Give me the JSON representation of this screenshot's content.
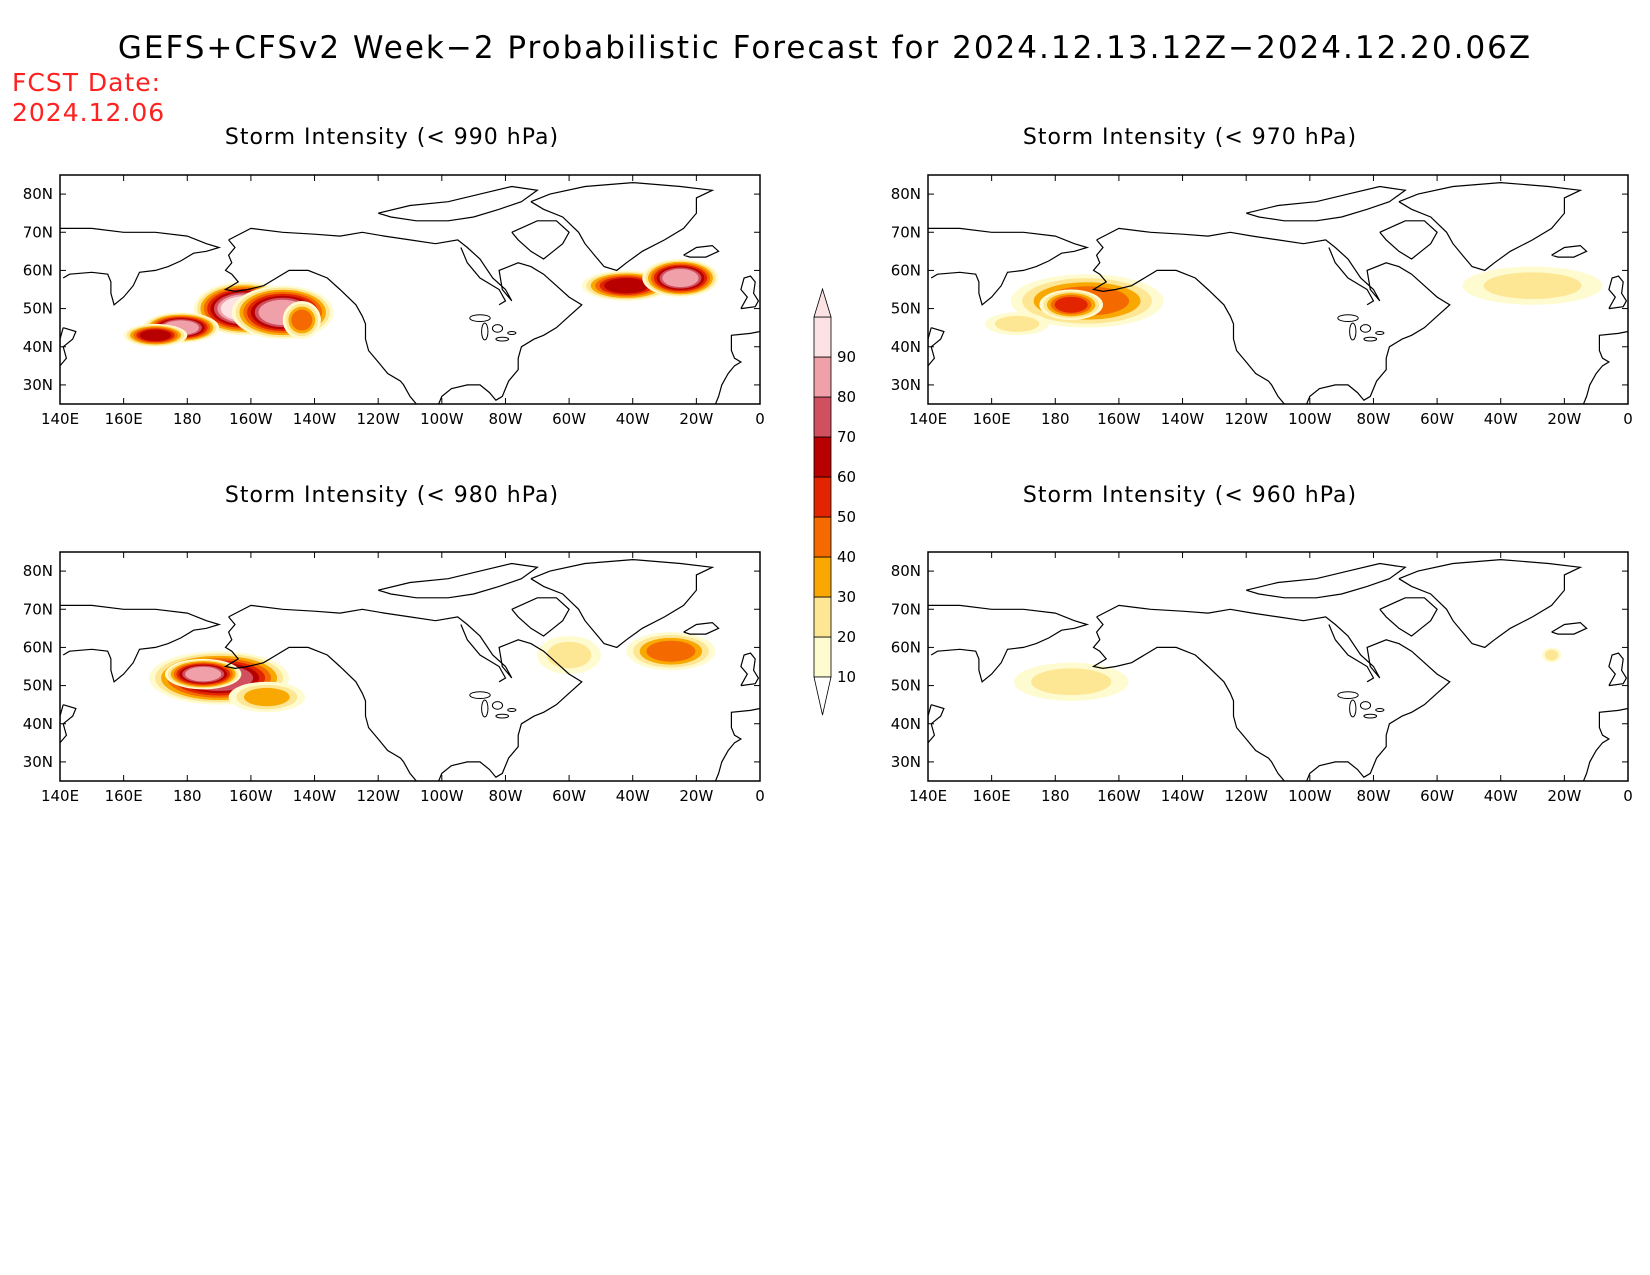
{
  "title": "GEFS+CFSv2 Week−2 Probabilistic Forecast for 2024.12.13.12Z−2024.12.20.06Z",
  "forecast_date": {
    "label": "FCST Date:",
    "value": "2024.12.06"
  },
  "panels": [
    {
      "title": "Storm Intensity (< 990 hPa)"
    },
    {
      "title": "Storm Intensity (< 970 hPa)"
    },
    {
      "title": "Storm Intensity (< 980 hPa)"
    },
    {
      "title": "Storm Intensity (< 960 hPa)"
    }
  ],
  "axes": {
    "lon_labels": [
      "140E",
      "160E",
      "180",
      "160W",
      "140W",
      "120W",
      "100W",
      "80W",
      "60W",
      "40W",
      "20W",
      "0"
    ],
    "lat_labels": [
      "80N",
      "70N",
      "60N",
      "50N",
      "40N",
      "30N"
    ],
    "lon_range": [
      140,
      360
    ],
    "lat_range": [
      25,
      85
    ]
  },
  "colorbar": {
    "levels": [
      10,
      20,
      30,
      40,
      50,
      60,
      70,
      80,
      90
    ],
    "colors": [
      "#fffbd0",
      "#fde794",
      "#f8a800",
      "#f46a00",
      "#e22400",
      "#b80000",
      "#d05060",
      "#f0a0a8",
      "#fde2e4"
    ]
  },
  "chart_data": {
    "type": "heatmap",
    "units": "probability (%)",
    "maps": [
      {
        "panel": 0,
        "blobs": [
          {
            "lon": 198,
            "lat": 50,
            "value": 90,
            "rlon": 16,
            "rlat": 7
          },
          {
            "lon": 210,
            "lat": 49,
            "value": 80,
            "rlon": 16,
            "rlat": 7
          },
          {
            "lon": 178,
            "lat": 45,
            "value": 80,
            "rlon": 12,
            "rlat": 4
          },
          {
            "lon": 170,
            "lat": 43,
            "value": 60,
            "rlon": 10,
            "rlat": 3
          },
          {
            "lon": 216,
            "lat": 47,
            "value": 40,
            "rlon": 6,
            "rlat": 5
          },
          {
            "lon": 318,
            "lat": 56,
            "value": 60,
            "rlon": 14,
            "rlat": 4
          },
          {
            "lon": 335,
            "lat": 58,
            "value": 80,
            "rlon": 12,
            "rlat": 5
          }
        ]
      },
      {
        "panel": 1,
        "blobs": [
          {
            "lon": 190,
            "lat": 52,
            "value": 40,
            "rlon": 24,
            "rlat": 7
          },
          {
            "lon": 185,
            "lat": 51,
            "value": 50,
            "rlon": 10,
            "rlat": 4
          },
          {
            "lon": 168,
            "lat": 46,
            "value": 20,
            "rlon": 10,
            "rlat": 3
          },
          {
            "lon": 330,
            "lat": 56,
            "value": 20,
            "rlon": 22,
            "rlat": 5
          }
        ]
      },
      {
        "panel": 2,
        "blobs": [
          {
            "lon": 190,
            "lat": 52,
            "value": 70,
            "rlon": 22,
            "rlat": 7
          },
          {
            "lon": 185,
            "lat": 53,
            "value": 80,
            "rlon": 12,
            "rlat": 4
          },
          {
            "lon": 205,
            "lat": 47,
            "value": 30,
            "rlon": 12,
            "rlat": 4
          },
          {
            "lon": 300,
            "lat": 58,
            "value": 20,
            "rlon": 10,
            "rlat": 5
          },
          {
            "lon": 332,
            "lat": 59,
            "value": 40,
            "rlon": 14,
            "rlat": 5
          }
        ]
      },
      {
        "panel": 3,
        "blobs": [
          {
            "lon": 185,
            "lat": 51,
            "value": 20,
            "rlon": 18,
            "rlat": 5
          },
          {
            "lon": 336,
            "lat": 58,
            "value": 20,
            "rlon": 3,
            "rlat": 2
          }
        ]
      }
    ]
  }
}
